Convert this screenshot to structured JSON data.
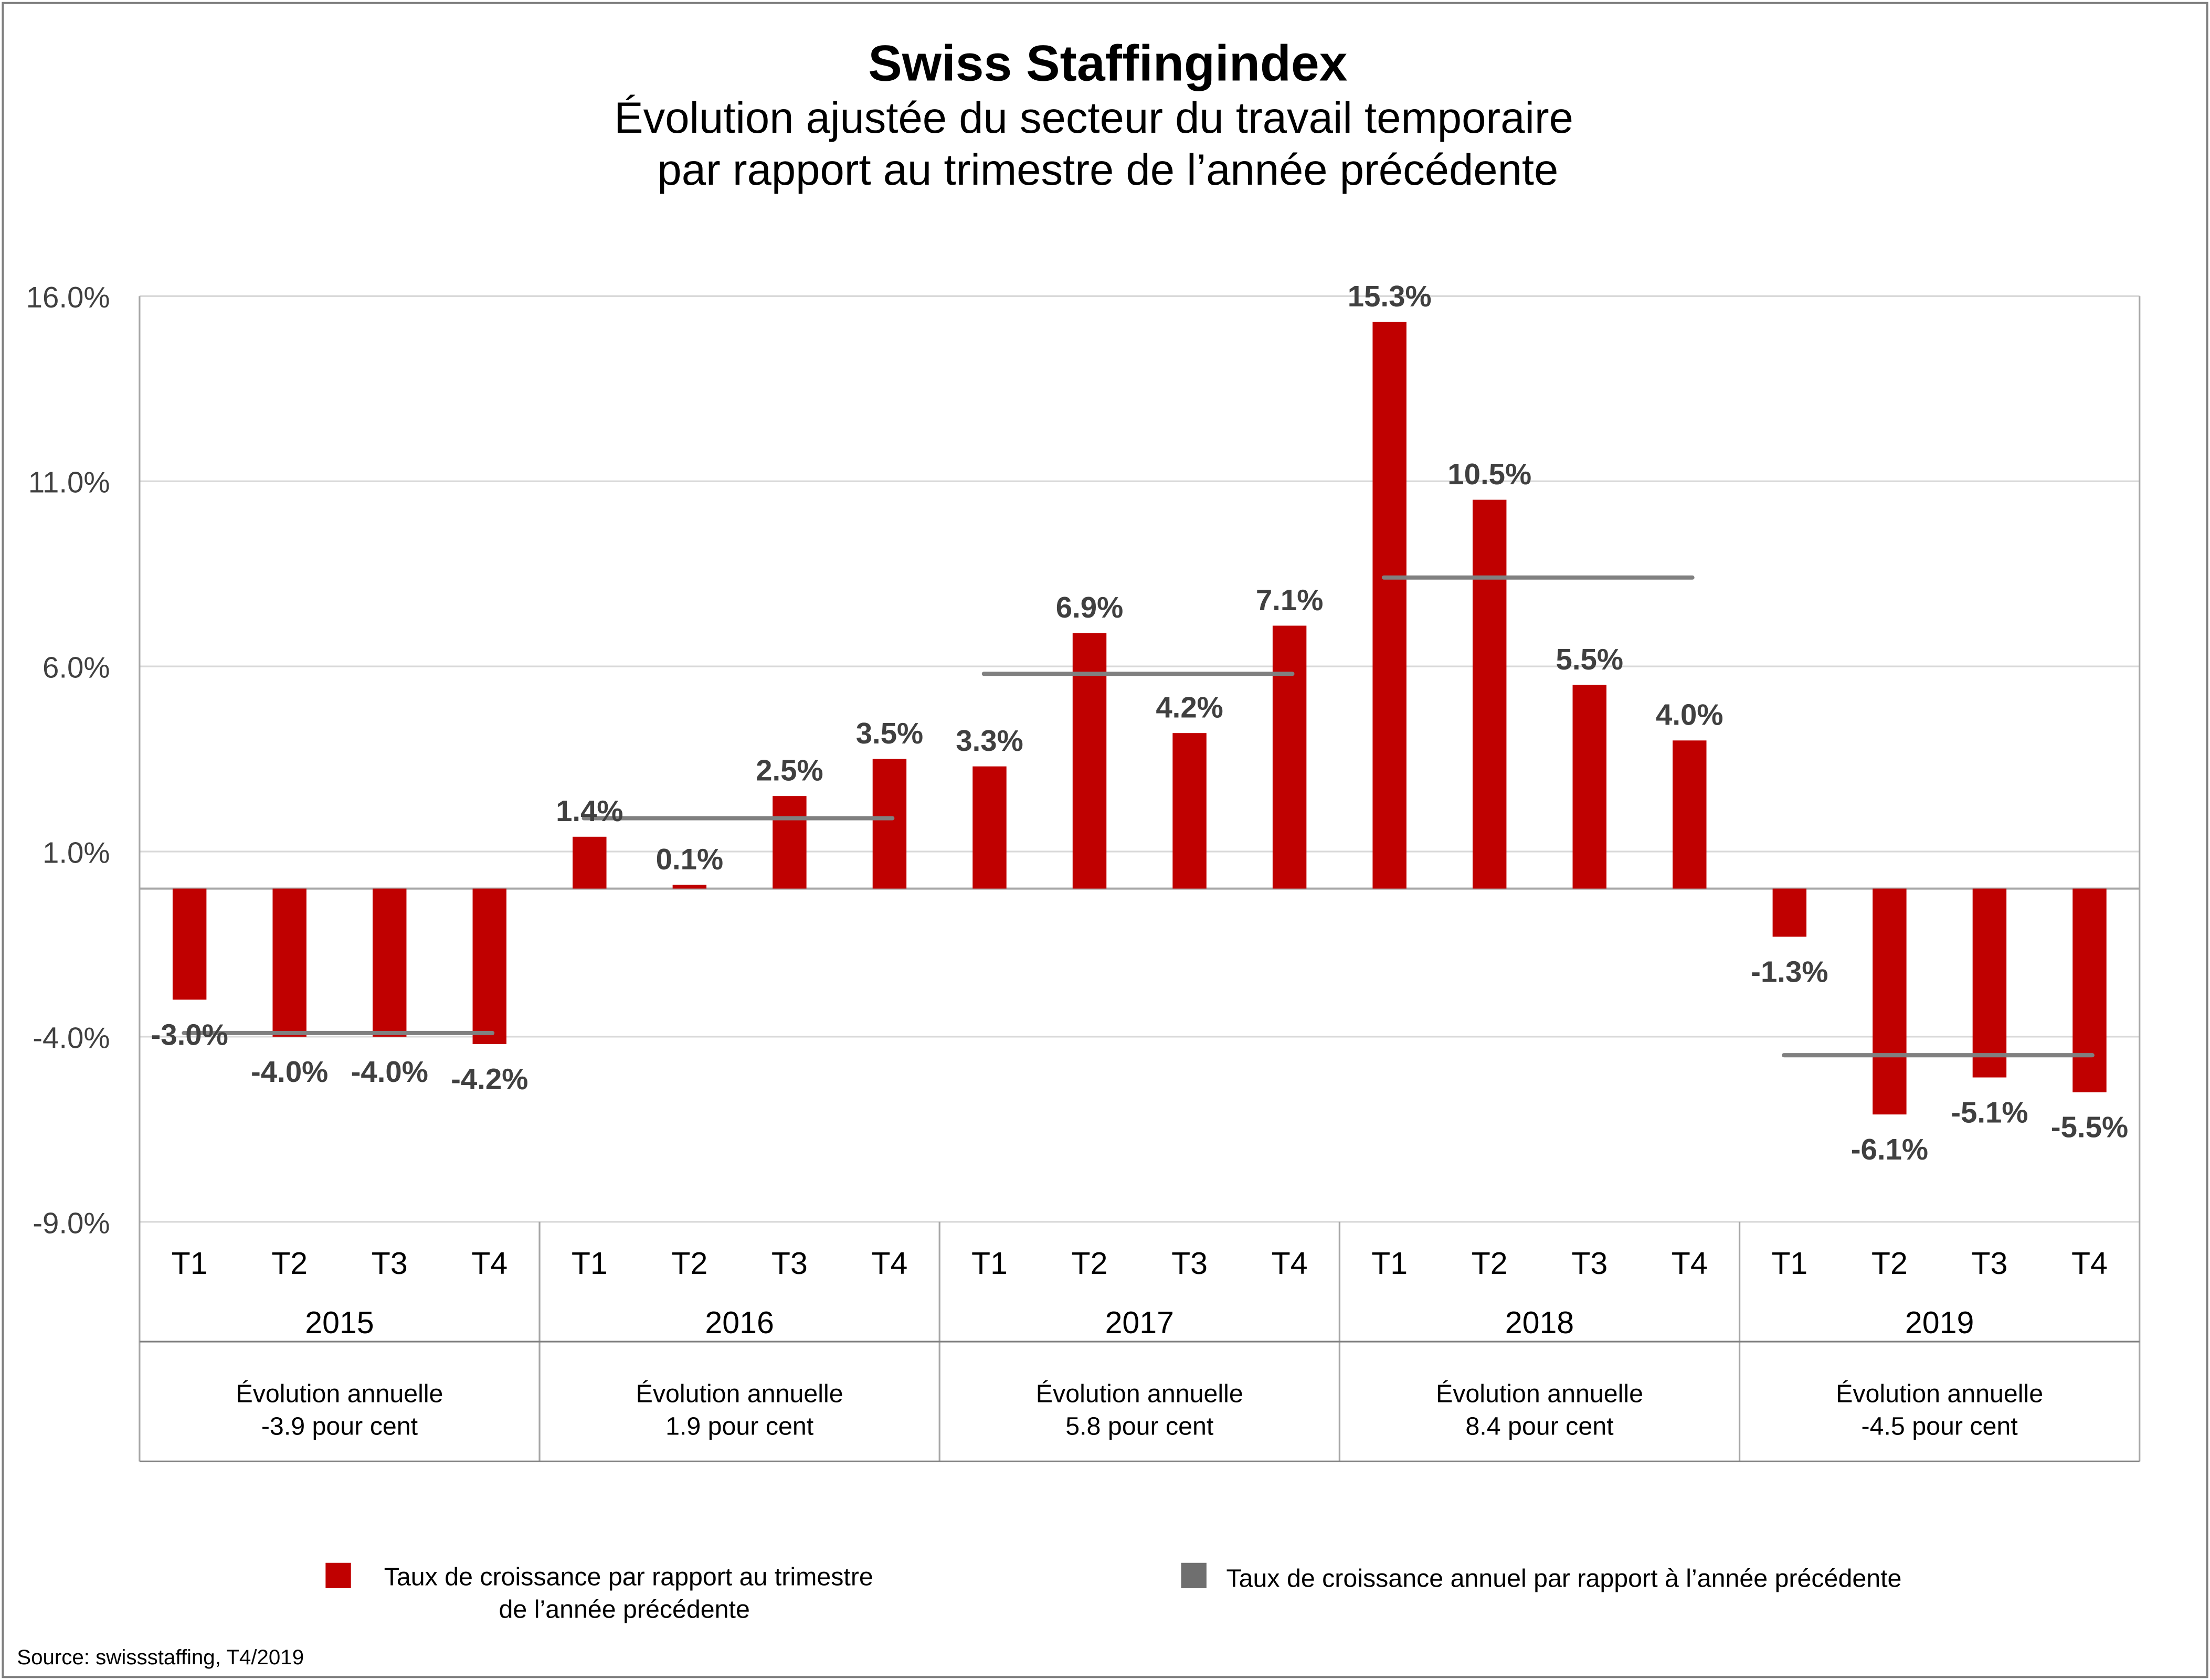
{
  "chart_data": {
    "type": "bar",
    "title": "Swiss Staffingindex",
    "subtitle": [
      "Évolution ajustée du secteur du travail temporaire",
      "par rapport au trimestre de l’année précédente"
    ],
    "ylim": [
      -9,
      16
    ],
    "yticks": [
      "16.0%",
      "11.0%",
      "6.0%",
      "1.0%",
      "-4.0%",
      "-9.0%"
    ],
    "ytick_values": [
      16,
      11,
      6,
      1,
      -4,
      -9
    ],
    "grid": true,
    "years": [
      "2015",
      "2016",
      "2017",
      "2018",
      "2019"
    ],
    "quarters": [
      "T1",
      "T2",
      "T3",
      "T4"
    ],
    "series": [
      {
        "name": "Taux de croissance par rapport au trimestre de l’année précédente",
        "type": "bar",
        "color": "#C00000",
        "values": [
          -3.0,
          -4.0,
          -4.0,
          -4.2,
          1.4,
          0.1,
          2.5,
          3.5,
          3.3,
          6.9,
          4.2,
          7.1,
          15.3,
          10.5,
          5.5,
          4.0,
          -1.3,
          -6.1,
          -5.1,
          -5.5
        ],
        "labels": [
          "-3.0%",
          "-4.0%",
          "-4.0%",
          "-4.2%",
          "1.4%",
          "0.1%",
          "2.5%",
          "3.5%",
          "3.3%",
          "6.9%",
          "4.2%",
          "7.1%",
          "15.3%",
          "10.5%",
          "5.5%",
          "4.0%",
          "-1.3%",
          "-6.1%",
          "-5.1%",
          "-5.5%"
        ]
      },
      {
        "name": "Taux de croissance annuel par rapport à l’année précédente",
        "type": "line",
        "color": "#808080",
        "values": [
          -3.9,
          1.9,
          5.8,
          8.4,
          -4.5
        ]
      }
    ],
    "annual_table": [
      {
        "label": "Évolution annuelle",
        "value": "-3.9 pour cent"
      },
      {
        "label": "Évolution annuelle",
        "value": "1.9 pour cent"
      },
      {
        "label": "Évolution annuelle",
        "value": "5.8 pour cent"
      },
      {
        "label": "Évolution annuelle",
        "value": "8.4 pour cent"
      },
      {
        "label": "Évolution annuelle",
        "value": "-4.5 pour cent"
      }
    ],
    "legend": {
      "placement": "bottom",
      "bar_line1": "Taux de croissance par rapport au trimestre",
      "bar_line2": "de l’année précédente",
      "line": "Taux de croissance annuel par rapport à l’année précédente"
    },
    "source": "Source: swissstaffing, T4/2019"
  }
}
